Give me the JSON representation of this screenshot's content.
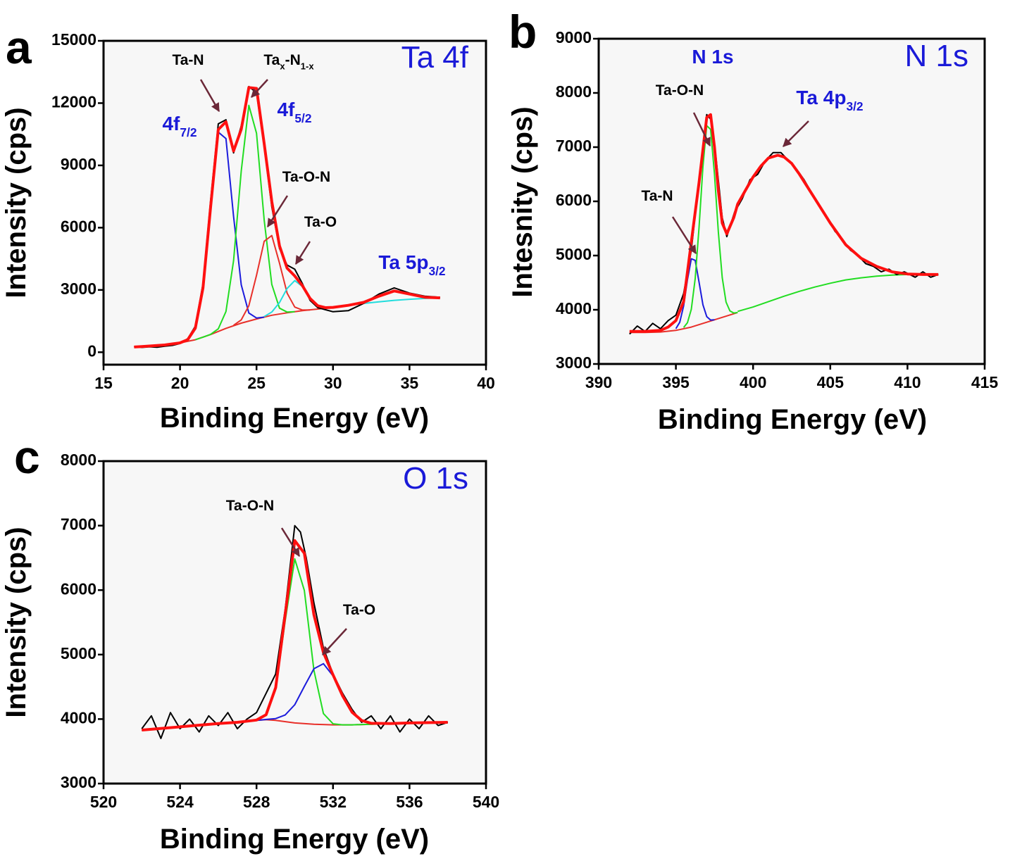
{
  "chart_data": [
    {
      "type": "line",
      "label": "a",
      "title": "Ta 4f",
      "xlabel": "Binding Energy (eV)",
      "ylabel": "Intensity (cps)",
      "xlim": [
        15,
        40
      ],
      "xticks": [
        15,
        20,
        25,
        30,
        35,
        40
      ],
      "ylim": [
        -600,
        15000
      ],
      "yticks": [
        0,
        3000,
        6000,
        9000,
        12000,
        15000
      ],
      "annotations": [
        {
          "color": "#000000",
          "parts": [
            {
              "text": "Ta-N"
            }
          ]
        },
        {
          "color": "#000000",
          "parts": [
            {
              "text": "Ta"
            },
            {
              "text": "x",
              "sub": true
            },
            {
              "text": "-N"
            },
            {
              "text": "1-x",
              "sub": true
            }
          ]
        },
        {
          "color": "#1a1ad8",
          "parts": [
            {
              "text": "4f"
            },
            {
              "text": "7/2",
              "sub": true
            }
          ]
        },
        {
          "color": "#1a1ad8",
          "parts": [
            {
              "text": "4f"
            },
            {
              "text": "5/2",
              "sub": true
            }
          ]
        },
        {
          "color": "#000000",
          "parts": [
            {
              "text": "Ta-O-N"
            }
          ]
        },
        {
          "color": "#000000",
          "parts": [
            {
              "text": "Ta-O"
            }
          ]
        },
        {
          "color": "#1a1ad8",
          "parts": [
            {
              "text": "Ta 5p"
            },
            {
              "text": "3/2",
              "sub": true
            }
          ]
        }
      ],
      "series": [
        {
          "color": "#e8302a",
          "x": [
            17,
            18,
            19,
            20,
            21,
            22,
            23,
            24,
            25,
            26,
            27,
            28,
            29,
            30,
            31,
            32,
            33,
            34,
            35,
            36,
            37
          ],
          "values": [
            250,
            300,
            350,
            450,
            600,
            850,
            1150,
            1400,
            1600,
            1780,
            1900,
            2000,
            2080,
            2160,
            2240,
            2400,
            2700,
            2950,
            2800,
            2650,
            2620
          ]
        },
        {
          "color": "#1c1cdc",
          "x": [
            20,
            20.5,
            21,
            21.5,
            22,
            22.5,
            23,
            23.5,
            24,
            24.5,
            25,
            25.5
          ],
          "values": [
            450,
            605,
            1160,
            3095,
            6980,
            10600,
            10290,
            6545,
            3250,
            1890,
            1650,
            1690
          ]
        },
        {
          "color": "#22dd22",
          "x": [
            21,
            21.5,
            22,
            22.5,
            23,
            23.5,
            24,
            24.5,
            25,
            25.5,
            26,
            26.5,
            27,
            27.5
          ],
          "values": [
            600,
            725,
            862,
            1126,
            1959,
            4404,
            8729,
            11895,
            10546,
            6363,
            3261,
            2124,
            1932,
            1950
          ]
        },
        {
          "color": "#e8302a",
          "x": [
            23.5,
            24,
            24.5,
            25,
            25.5,
            26,
            26.5,
            27,
            27.5,
            28,
            28.5
          ],
          "values": [
            1295,
            1556,
            2240,
            3708,
            5346,
            5620,
            4292,
            2848,
            2174,
            2032,
            2040
          ]
        },
        {
          "color": "#22dddd",
          "x": [
            25.5,
            26,
            26.5,
            27,
            27.5,
            28,
            28.5,
            29,
            29.5,
            30,
            31,
            32,
            33,
            34,
            35,
            36,
            37
          ],
          "values": [
            1717,
            1938,
            2392,
            3069,
            3450,
            3169,
            2592,
            2238,
            2147,
            2160,
            2260,
            2350,
            2430,
            2500,
            2550,
            2590,
            2620
          ]
        },
        {
          "color": "#000000",
          "x": [
            17,
            17.5,
            18,
            18.5,
            19,
            19.5,
            20,
            20.5,
            21,
            21.5,
            22,
            22.5,
            23,
            23.5,
            24,
            24.5,
            25,
            25.5,
            26,
            26.5,
            27,
            27.5,
            28,
            28.5,
            29,
            29.5,
            30,
            31,
            32,
            33,
            34,
            35,
            36,
            37
          ],
          "values": [
            280,
            230,
            260,
            240,
            290,
            330,
            420,
            650,
            1250,
            3300,
            7300,
            11000,
            11200,
            9600,
            10900,
            12800,
            12500,
            9900,
            7000,
            5000,
            4200,
            4000,
            3300,
            2500,
            2150,
            2050,
            1950,
            2000,
            2350,
            2800,
            3100,
            2850,
            2700,
            2650
          ]
        },
        {
          "color": "#ff1010",
          "x": [
            17,
            17.5,
            18,
            18.5,
            19,
            19.5,
            20,
            20.5,
            21,
            21.5,
            22,
            22.5,
            23,
            23.5,
            24,
            24.5,
            25,
            25.5,
            26,
            26.5,
            27,
            27.5,
            28,
            28.5,
            29,
            29.5,
            30,
            31,
            32,
            33,
            34,
            35,
            36,
            37
          ],
          "values": [
            250,
            275,
            300,
            325,
            350,
            400,
            450,
            605,
            1160,
            3096,
            6992,
            10726,
            11099,
            9694,
            10735,
            12750,
            12707,
            10046,
            7259,
            5128,
            4049,
            3674,
            3201,
            2592,
            2238,
            2147,
            2160,
            2260,
            2400,
            2700,
            2950,
            2800,
            2650,
            2620
          ]
        }
      ]
    },
    {
      "type": "line",
      "label": "b",
      "title": "N 1s",
      "xlabel": "Binding Energy (eV)",
      "ylabel": "Intesnity (cps)",
      "xlim": [
        390,
        415
      ],
      "xticks": [
        390,
        395,
        400,
        405,
        410,
        415
      ],
      "ylim": [
        3000,
        9000
      ],
      "yticks": [
        3000,
        4000,
        5000,
        6000,
        7000,
        8000,
        9000
      ],
      "annotations": [
        {
          "color": "#1a1ad8",
          "parts": [
            {
              "text": "N 1s"
            }
          ]
        },
        {
          "color": "#000000",
          "parts": [
            {
              "text": "Ta-O-N"
            }
          ]
        },
        {
          "color": "#1a1ad8",
          "parts": [
            {
              "text": "Ta 4p"
            },
            {
              "text": "3/2",
              "sub": true
            }
          ]
        },
        {
          "color": "#000000",
          "parts": [
            {
              "text": "Ta-N"
            }
          ]
        }
      ],
      "series": [
        {
          "color": "#e8302a",
          "x": [
            392,
            393,
            394,
            395,
            396,
            397,
            398,
            399
          ],
          "values": [
            3580,
            3580,
            3590,
            3620,
            3680,
            3770,
            3860,
            3950
          ]
        },
        {
          "color": "#22dd22",
          "x": [
            399,
            400,
            401,
            402,
            403,
            404,
            405,
            406,
            407,
            408,
            409,
            410,
            411,
            412
          ],
          "values": [
            3970,
            4050,
            4150,
            4250,
            4340,
            4420,
            4490,
            4550,
            4590,
            4620,
            4640,
            4650,
            4650,
            4650
          ]
        },
        {
          "color": "#1c1cdc",
          "x": [
            395,
            395.25,
            395.5,
            395.75,
            396,
            396.25,
            396.5,
            396.75,
            397,
            397.25,
            397.5
          ],
          "values": [
            3650,
            3770,
            4072,
            4552,
            4940,
            4912,
            4509,
            4092,
            3874,
            3811,
            3815
          ]
        },
        {
          "color": "#22dd22",
          "x": [
            395.5,
            395.75,
            396,
            396.25,
            396.5,
            396.75,
            397,
            397.25,
            397.5,
            397.75,
            398,
            398.25,
            398.5,
            398.75,
            399
          ],
          "values": [
            3672,
            3761,
            4009,
            4573,
            5522,
            6642,
            7396,
            7327,
            6501,
            5431,
            4593,
            4143,
            3979,
            3940,
            3950
          ]
        },
        {
          "color": "#000000",
          "x": [
            392,
            392.5,
            393,
            393.5,
            394,
            394.5,
            395,
            395.5,
            396,
            396.5,
            397,
            397.3,
            397.6,
            398,
            398.3,
            398.8,
            399.3,
            399.8,
            400.3,
            400.8,
            401.3,
            401.8,
            402.3,
            402.8,
            403.3,
            403.8,
            404.3,
            404.8,
            405.3,
            405.8,
            406.3,
            406.8,
            407.3,
            407.8,
            408.3,
            408.8,
            409.3,
            409.8,
            410.5,
            411,
            411.5,
            412
          ],
          "values": [
            3550,
            3700,
            3600,
            3750,
            3650,
            3800,
            3900,
            4300,
            5100,
            6400,
            7600,
            7500,
            6800,
            5700,
            5350,
            5800,
            6050,
            6400,
            6500,
            6750,
            6900,
            6900,
            6750,
            6600,
            6400,
            6150,
            5900,
            5700,
            5450,
            5300,
            5100,
            5000,
            4850,
            4800,
            4700,
            4750,
            4650,
            4700,
            4600,
            4700,
            4600,
            4650
          ]
        },
        {
          "color": "#ff1010",
          "x": [
            392,
            393,
            394,
            394.5,
            395,
            395.5,
            396,
            396.5,
            397,
            397.25,
            397.5,
            397.75,
            398,
            398.3,
            398.75,
            399,
            399.5,
            400,
            400.5,
            401,
            401.6,
            402,
            402.5,
            403,
            404,
            405,
            406,
            407,
            408,
            409,
            410,
            411,
            412
          ],
          "values": [
            3600,
            3600,
            3620,
            3680,
            3800,
            4150,
            5250,
            6350,
            7550,
            7600,
            7000,
            6200,
            5600,
            5400,
            5700,
            5950,
            6200,
            6450,
            6650,
            6800,
            6850,
            6820,
            6700,
            6500,
            6050,
            5600,
            5200,
            4950,
            4800,
            4700,
            4660,
            4650,
            4650
          ]
        }
      ]
    },
    {
      "type": "line",
      "label": "c",
      "title": "O 1s",
      "xlabel": "Binding Energy (eV)",
      "ylabel": "Intensity (cps)",
      "xlim": [
        520,
        540
      ],
      "xticks": [
        520,
        524,
        528,
        532,
        536,
        540
      ],
      "ylim": [
        3000,
        8000
      ],
      "yticks": [
        3000,
        4000,
        5000,
        6000,
        7000,
        8000
      ],
      "annotations": [
        {
          "color": "#000000",
          "parts": [
            {
              "text": "Ta-O-N"
            }
          ]
        },
        {
          "color": "#000000",
          "parts": [
            {
              "text": "Ta-O"
            }
          ]
        }
      ],
      "series": [
        {
          "color": "#e8302a",
          "x": [
            522,
            524,
            526,
            527,
            528,
            528.5,
            529,
            530,
            531,
            532,
            533,
            534,
            536,
            538
          ],
          "values": [
            3830,
            3880,
            3930,
            3950,
            3980,
            3990,
            3980,
            3940,
            3920,
            3910,
            3910,
            3920,
            3940,
            3950
          ]
        },
        {
          "color": "#22dd22",
          "x": [
            522,
            524,
            526,
            527,
            527.5,
            528,
            528.5,
            529,
            529.5,
            530,
            530.5,
            531,
            531.5,
            532,
            532.5,
            533,
            534,
            536,
            538
          ],
          "values": [
            3830,
            3880,
            3930,
            3950,
            3965,
            3985,
            4063,
            4460,
            5523,
            6484,
            5994,
            4756,
            4085,
            3927,
            3910,
            3910,
            3920,
            3940,
            3950
          ]
        },
        {
          "color": "#1c1cdc",
          "x": [
            522,
            524,
            526,
            528,
            529,
            529.5,
            530,
            530.5,
            531,
            531.5,
            532,
            532.5,
            533,
            533.5,
            534,
            535,
            536,
            538
          ],
          "values": [
            3830,
            3880,
            3930,
            3980,
            4008,
            4063,
            4223,
            4507,
            4781,
            4859,
            4670,
            4360,
            4106,
            3978,
            3934,
            3930,
            3940,
            3950
          ]
        },
        {
          "color": "#000000",
          "x": [
            522,
            522.5,
            523,
            523.5,
            524,
            524.5,
            525,
            525.5,
            526,
            526.5,
            527,
            527.5,
            528,
            528.5,
            529,
            529.5,
            530,
            530.3,
            530.6,
            531,
            531.5,
            532,
            532.5,
            533,
            533.5,
            534,
            534.5,
            535,
            535.5,
            536,
            536.5,
            537,
            537.5,
            538
          ],
          "values": [
            3850,
            4050,
            3700,
            4100,
            3850,
            4000,
            3800,
            4050,
            3900,
            4100,
            3850,
            4000,
            4100,
            4400,
            4700,
            5700,
            7000,
            6900,
            6500,
            5800,
            5100,
            4700,
            4400,
            4150,
            3950,
            4050,
            3850,
            4050,
            3800,
            4000,
            3850,
            4050,
            3900,
            3950
          ]
        },
        {
          "color": "#ff1010",
          "x": [
            522,
            524,
            526,
            527,
            528,
            528.5,
            529,
            529.5,
            530,
            530.5,
            531,
            531.5,
            532,
            532.5,
            533,
            533.5,
            534,
            535,
            536,
            538
          ],
          "values": [
            3830,
            3880,
            3930,
            3950,
            3985,
            4068,
            4488,
            5626,
            6767,
            6571,
            5617,
            5029,
            4687,
            4360,
            4106,
            3978,
            3934,
            3930,
            3940,
            3950
          ]
        }
      ]
    }
  ]
}
